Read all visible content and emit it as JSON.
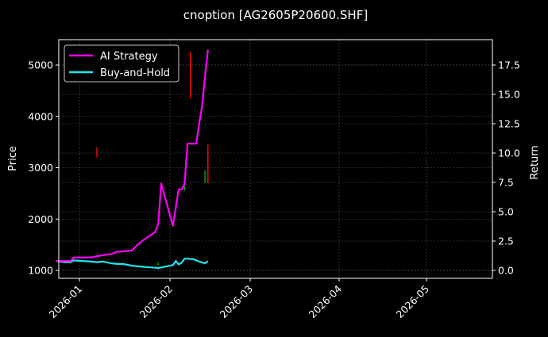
{
  "chart_data": {
    "type": "line",
    "title": "cnoption [AG2605P20600.SHF]",
    "xlabel": "",
    "ylabel": "Price",
    "ylabel_right": "Return",
    "ylim": [
      850,
      5450
    ],
    "ylim_right": [
      -0.6,
      19.3
    ],
    "yticks": [
      1000,
      2000,
      3000,
      4000,
      5000
    ],
    "yticks_right": [
      "0.0",
      "2.5",
      "5.0",
      "7.5",
      "10.0",
      "12.5",
      "15.0",
      "17.5"
    ],
    "xticks": [
      "2026-01",
      "2026-02",
      "2026-03",
      "2026-04",
      "2026-05"
    ],
    "grid": true,
    "legend_position": "upper left",
    "legend": [
      "AI Strategy",
      "Buy-and-Hold"
    ],
    "series": [
      {
        "name": "AI Strategy",
        "axis": "right",
        "color": "#ff00ff",
        "x": [
          "2025-12-24",
          "2025-12-27",
          "2025-12-29",
          "2025-12-30",
          "2026-01-02",
          "2026-01-05",
          "2026-01-07",
          "2026-01-09",
          "2026-01-12",
          "2026-01-14",
          "2026-01-15",
          "2026-01-19",
          "2026-01-21",
          "2026-01-22",
          "2026-01-23",
          "2026-01-26",
          "2026-01-27",
          "2026-01-28",
          "2026-01-29",
          "2026-02-02",
          "2026-02-04",
          "2026-02-05",
          "2026-02-06",
          "2026-02-07",
          "2026-02-09",
          "2026-02-10",
          "2026-02-11",
          "2026-02-12",
          "2026-02-13",
          "2026-02-14"
        ],
        "values": [
          0.8,
          0.8,
          0.8,
          1.1,
          1.1,
          1.1,
          1.2,
          1.3,
          1.4,
          1.6,
          1.6,
          1.7,
          2.2,
          2.4,
          2.6,
          3.1,
          3.3,
          4.0,
          7.4,
          3.8,
          6.9,
          6.9,
          7.4,
          10.8,
          10.8,
          10.8,
          12.5,
          14.0,
          16.5,
          18.8
        ]
      },
      {
        "name": "Buy-and-Hold",
        "axis": "right",
        "color": "#22e5ee",
        "x": [
          "2025-12-24",
          "2025-12-27",
          "2025-12-29",
          "2025-12-30",
          "2026-01-05",
          "2026-01-07",
          "2026-01-09",
          "2026-01-12",
          "2026-01-14",
          "2026-01-16",
          "2026-01-19",
          "2026-01-21",
          "2026-01-23",
          "2026-01-26",
          "2026-01-28",
          "2026-01-29",
          "2026-01-30",
          "2026-02-02",
          "2026-02-03",
          "2026-02-04",
          "2026-02-05",
          "2026-02-06",
          "2026-02-07",
          "2026-02-09",
          "2026-02-11",
          "2026-02-13",
          "2026-02-14"
        ],
        "values": [
          0.8,
          0.7,
          0.7,
          0.85,
          0.75,
          0.7,
          0.75,
          0.6,
          0.55,
          0.55,
          0.4,
          0.35,
          0.3,
          0.25,
          0.2,
          0.25,
          0.3,
          0.45,
          0.8,
          0.5,
          0.65,
          1.0,
          1.0,
          0.95,
          0.75,
          0.6,
          0.8
        ]
      },
      {
        "name": "Price candles (down)",
        "axis": "left",
        "color": "#ff0000",
        "type": "candlestick_wicks",
        "points": [
          {
            "x": "2026-01-07",
            "low": 3200,
            "high": 3400
          },
          {
            "x": "2026-02-08",
            "low": 4350,
            "high": 5250
          },
          {
            "x": "2026-02-14",
            "low": 2700,
            "high": 3450
          }
        ]
      },
      {
        "name": "Price candles (up)",
        "axis": "left",
        "color": "#00aa00",
        "type": "candlestick_wicks",
        "points": [
          {
            "x": "2026-02-06",
            "low": 2550,
            "high": 2650
          },
          {
            "x": "2026-02-13",
            "low": 2700,
            "high": 2950
          },
          {
            "x": "2026-01-28",
            "low": 1100,
            "high": 1150
          }
        ]
      }
    ]
  }
}
